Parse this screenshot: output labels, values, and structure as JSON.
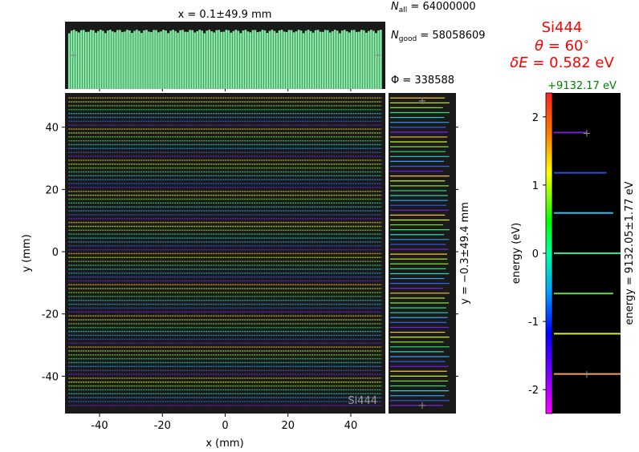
{
  "stats": {
    "n_all": "64000000",
    "n_good": "58058609",
    "phi": "338588"
  },
  "crystal": {
    "name": "Si444",
    "theta": "60",
    "delta_e": "0.582 eV",
    "watermark": "Si444"
  },
  "energy_offset_label": "+9132.17 eV",
  "chart_data": [
    {
      "type": "heatmap",
      "xlabel": "x (mm)",
      "ylabel": "y (mm)",
      "xlim": [
        -51,
        51
      ],
      "ylim": [
        -52,
        51
      ],
      "xticks": [
        -40,
        -20,
        0,
        20,
        40
      ],
      "yticks": [
        -40,
        -20,
        0,
        20,
        40
      ],
      "xtick_labels": [
        "-40",
        "-20",
        "0",
        "20",
        "40"
      ],
      "ytick_labels": [
        "-40",
        "-20",
        "0",
        "20",
        "40"
      ],
      "line_range_y": [
        -49.4,
        49.4
      ],
      "line_range_x": [
        -49.9,
        49.9
      ],
      "background": "#1a1a1a"
    },
    {
      "type": "bar",
      "title": "x = 0.1±49.9 mm",
      "xlim": [
        -51,
        51
      ],
      "bar_color": "#80e8a0",
      "bar_range": [
        -50,
        50
      ],
      "bar_level": 0.88
    },
    {
      "type": "line",
      "ylabel": "y = −0.3±49.4 mm",
      "line_range": [
        -49.4,
        49.4
      ],
      "palette": [
        "#f4c430",
        "#c8f030",
        "#80e030",
        "#30e070",
        "#30d0c0",
        "#30a0f0",
        "#3060f0",
        "#7a20f0"
      ]
    },
    {
      "type": "line",
      "ylabel": "energy (eV)",
      "ylabel2": "energy = 9132.05±1.77 eV",
      "ylim": [
        2.35,
        -2.35
      ],
      "yticks": [
        -2,
        -1,
        0,
        1,
        2
      ],
      "ytick_labels": [
        "-2",
        "-1",
        "0",
        "1",
        "2"
      ],
      "lines": [
        {
          "energy": -1.77,
          "color": "#f4a050"
        },
        {
          "energy": -1.18,
          "color": "#d0f040"
        },
        {
          "energy": -0.59,
          "color": "#60e040"
        },
        {
          "energy": 0.0,
          "color": "#20e890"
        },
        {
          "energy": 0.59,
          "color": "#20c0f0"
        },
        {
          "energy": 1.18,
          "color": "#2050e0"
        },
        {
          "energy": 1.77,
          "color": "#7020d0"
        }
      ],
      "line_widths": [
        1.0,
        1.0,
        0.89,
        1.0,
        0.89,
        0.79,
        0.5
      ],
      "colormap": [
        "#ff2020",
        "#ff8000",
        "#ffff00",
        "#00ff00",
        "#00ffa0",
        "#00a0ff",
        "#0000ff",
        "#8000ff",
        "#ff00ff"
      ]
    }
  ]
}
